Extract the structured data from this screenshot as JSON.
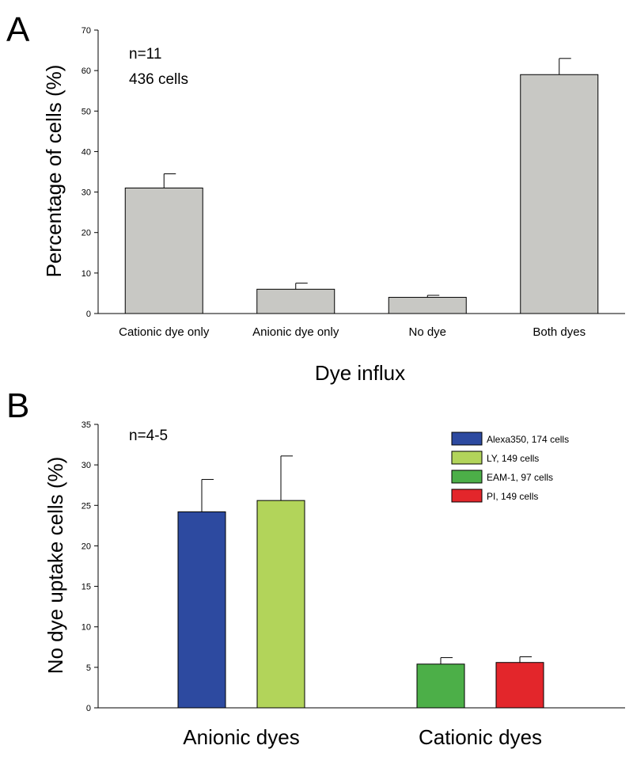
{
  "chart_data": [
    {
      "panel": "A",
      "type": "bar",
      "title": "",
      "xlabel": "Dye influx",
      "ylabel": "Percentage of cells (%)",
      "ylim": [
        0,
        70
      ],
      "yticks": [
        "0",
        "10",
        "20",
        "30",
        "40",
        "50",
        "60",
        "70"
      ],
      "categories": [
        "Cationic dye only",
        "Anionic dye only",
        "No dye",
        "Both dyes"
      ],
      "values": [
        31,
        6,
        4,
        59
      ],
      "errors": [
        3.5,
        1.5,
        0.5,
        4
      ],
      "bar_color": "#c8c8c4",
      "annotations": [
        "n=11",
        "436 cells"
      ],
      "grid": false
    },
    {
      "panel": "B",
      "type": "bar",
      "title": "",
      "xlabel": "",
      "ylabel": "No dye uptake cells (%)",
      "ylim": [
        0,
        35
      ],
      "yticks": [
        "0",
        "5",
        "10",
        "15",
        "20",
        "25",
        "30",
        "35"
      ],
      "groups": [
        "Anionic dyes",
        "Cationic dyes"
      ],
      "series": [
        {
          "name": "Alexa350, 174 cells",
          "group": 0,
          "value": 24.2,
          "error": 4.0,
          "color": "#2d4aa0"
        },
        {
          "name": "LY, 149 cells",
          "group": 0,
          "value": 25.6,
          "error": 5.5,
          "color": "#b2d45a"
        },
        {
          "name": "EAM-1, 97 cells",
          "group": 1,
          "value": 5.4,
          "error": 0.8,
          "color": "#4caf48"
        },
        {
          "name": "PI, 149 cells",
          "group": 1,
          "value": 5.6,
          "error": 0.7,
          "color": "#e3262b"
        }
      ],
      "annotations": [
        "n=4-5"
      ],
      "legend_position": "top-right",
      "grid": false
    }
  ]
}
